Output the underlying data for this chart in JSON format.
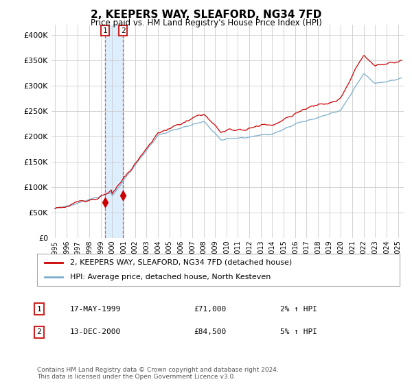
{
  "title": "2, KEEPERS WAY, SLEAFORD, NG34 7FD",
  "subtitle": "Price paid vs. HM Land Registry's House Price Index (HPI)",
  "legend_line1": "2, KEEPERS WAY, SLEAFORD, NG34 7FD (detached house)",
  "legend_line2": "HPI: Average price, detached house, North Kesteven",
  "house_color": "#cc0000",
  "hpi_color": "#7aadcc",
  "vline_color": "#dd4444",
  "span_color": "#ddeeff",
  "transaction1_date": "17-MAY-1999",
  "transaction1_price": "£71,000",
  "transaction1_hpi": "2% ↑ HPI",
  "transaction2_date": "13-DEC-2000",
  "transaction2_price": "£84,500",
  "transaction2_hpi": "5% ↑ HPI",
  "footer": "Contains HM Land Registry data © Crown copyright and database right 2024.\nThis data is licensed under the Open Government Licence v3.0.",
  "ylim": [
    0,
    420000
  ],
  "yticks": [
    0,
    50000,
    100000,
    150000,
    200000,
    250000,
    300000,
    350000,
    400000
  ],
  "xlim_start": 1994.7,
  "xlim_end": 2025.5,
  "background_color": "#ffffff",
  "grid_color": "#cccccc",
  "t1_year": 1999.37,
  "t1_value": 71000,
  "t2_year": 2000.96,
  "t2_value": 84500
}
